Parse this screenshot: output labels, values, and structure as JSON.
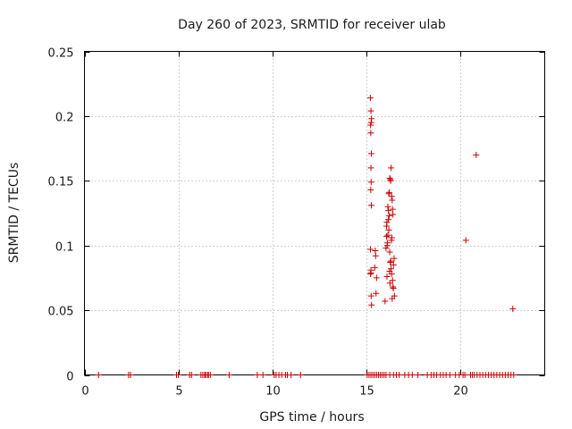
{
  "chart_data": {
    "type": "scatter",
    "title": "Day 260 of 2023, SRMTID for receiver ulab",
    "xlabel": "GPS time / hours",
    "ylabel": "SRMTID / TECUs",
    "xlim": [
      0,
      24.5
    ],
    "ylim": [
      0,
      0.25
    ],
    "xticks": [
      0,
      5,
      10,
      15,
      20
    ],
    "yticks": [
      0,
      0.05,
      0.1,
      0.15,
      0.2,
      0.25
    ],
    "xtick_labels": [
      "0",
      "5",
      "10",
      "15",
      "20"
    ],
    "ytick_labels": [
      "0",
      "0.05",
      "0.1",
      "0.15",
      "0.2",
      "0.25"
    ],
    "grid": true,
    "marker": "plus",
    "color": "#cc0000",
    "series": [
      {
        "x": [
          0.75,
          2.35,
          2.45,
          4.9,
          5.0,
          5.6,
          5.7,
          6.2,
          6.3,
          6.4,
          6.45,
          6.55,
          6.6,
          6.7,
          7.7,
          9.2,
          9.5,
          10.1,
          10.2,
          10.35,
          10.5,
          10.7,
          10.8,
          11.0,
          11.5,
          15.05,
          15.15,
          15.25,
          15.35,
          15.45,
          15.55,
          15.65,
          15.75,
          15.85,
          15.95,
          16.05,
          16.25,
          16.45,
          16.6,
          16.75,
          17.05,
          17.25,
          17.45,
          17.75,
          18.25,
          18.45,
          18.6,
          18.75,
          18.95,
          19.1,
          19.25,
          19.45,
          19.75,
          19.95,
          20.15,
          20.25,
          20.55,
          20.65,
          20.75,
          20.9,
          21.05,
          21.2,
          21.35,
          21.5,
          21.65,
          21.8,
          21.95,
          22.1,
          22.25,
          22.4,
          22.55,
          22.7,
          22.85,
          15.22,
          15.25,
          15.28,
          15.26,
          15.23,
          15.24,
          15.27,
          15.25,
          15.26,
          15.24,
          15.27,
          15.22,
          15.25,
          15.23,
          15.26,
          15.28,
          15.25,
          15.5,
          15.45,
          15.55,
          15.52,
          15.48,
          16.0,
          16.05,
          16.08,
          16.1,
          16.12,
          16.15,
          16.18,
          16.2,
          16.22,
          16.25,
          16.28,
          16.3,
          16.32,
          16.35,
          16.38,
          16.4,
          16.42,
          16.45,
          16.48,
          16.5,
          16.15,
          16.2,
          16.25,
          16.3,
          16.35,
          16.1,
          16.4,
          16.28,
          16.32,
          16.18,
          16.22,
          16.38,
          16.42,
          16.12,
          16.26,
          16.34,
          16.44,
          16.08,
          16.24,
          16.36,
          20.3,
          20.85,
          22.8
        ],
        "y": [
          0,
          0,
          0,
          0,
          0,
          0,
          0,
          0,
          0,
          0,
          0,
          0,
          0,
          0,
          0,
          0,
          0,
          0,
          0,
          0,
          0,
          0,
          0,
          0,
          0,
          0,
          0,
          0,
          0,
          0,
          0,
          0,
          0,
          0,
          0,
          0,
          0,
          0,
          0,
          0,
          0,
          0,
          0,
          0,
          0,
          0,
          0,
          0,
          0,
          0,
          0,
          0,
          0,
          0,
          0,
          0,
          0,
          0,
          0,
          0,
          0,
          0,
          0,
          0,
          0,
          0,
          0,
          0,
          0,
          0,
          0,
          0,
          0,
          0.214,
          0.204,
          0.198,
          0.195,
          0.193,
          0.187,
          0.171,
          0.16,
          0.149,
          0.143,
          0.131,
          0.097,
          0.081,
          0.078,
          0.061,
          0.054,
          0.079,
          0.092,
          0.083,
          0.075,
          0.063,
          0.096,
          0.057,
          0.098,
          0.107,
          0.118,
          0.1,
          0.13,
          0.127,
          0.14,
          0.141,
          0.152,
          0.151,
          0.15,
          0.16,
          0.138,
          0.135,
          0.128,
          0.124,
          0.085,
          0.09,
          0.061,
          0.108,
          0.112,
          0.095,
          0.088,
          0.078,
          0.076,
          0.073,
          0.087,
          0.082,
          0.12,
          0.123,
          0.059,
          0.068,
          0.102,
          0.071,
          0.104,
          0.067,
          0.115,
          0.08,
          0.106,
          0.104,
          0.17,
          0.051
        ]
      }
    ]
  }
}
